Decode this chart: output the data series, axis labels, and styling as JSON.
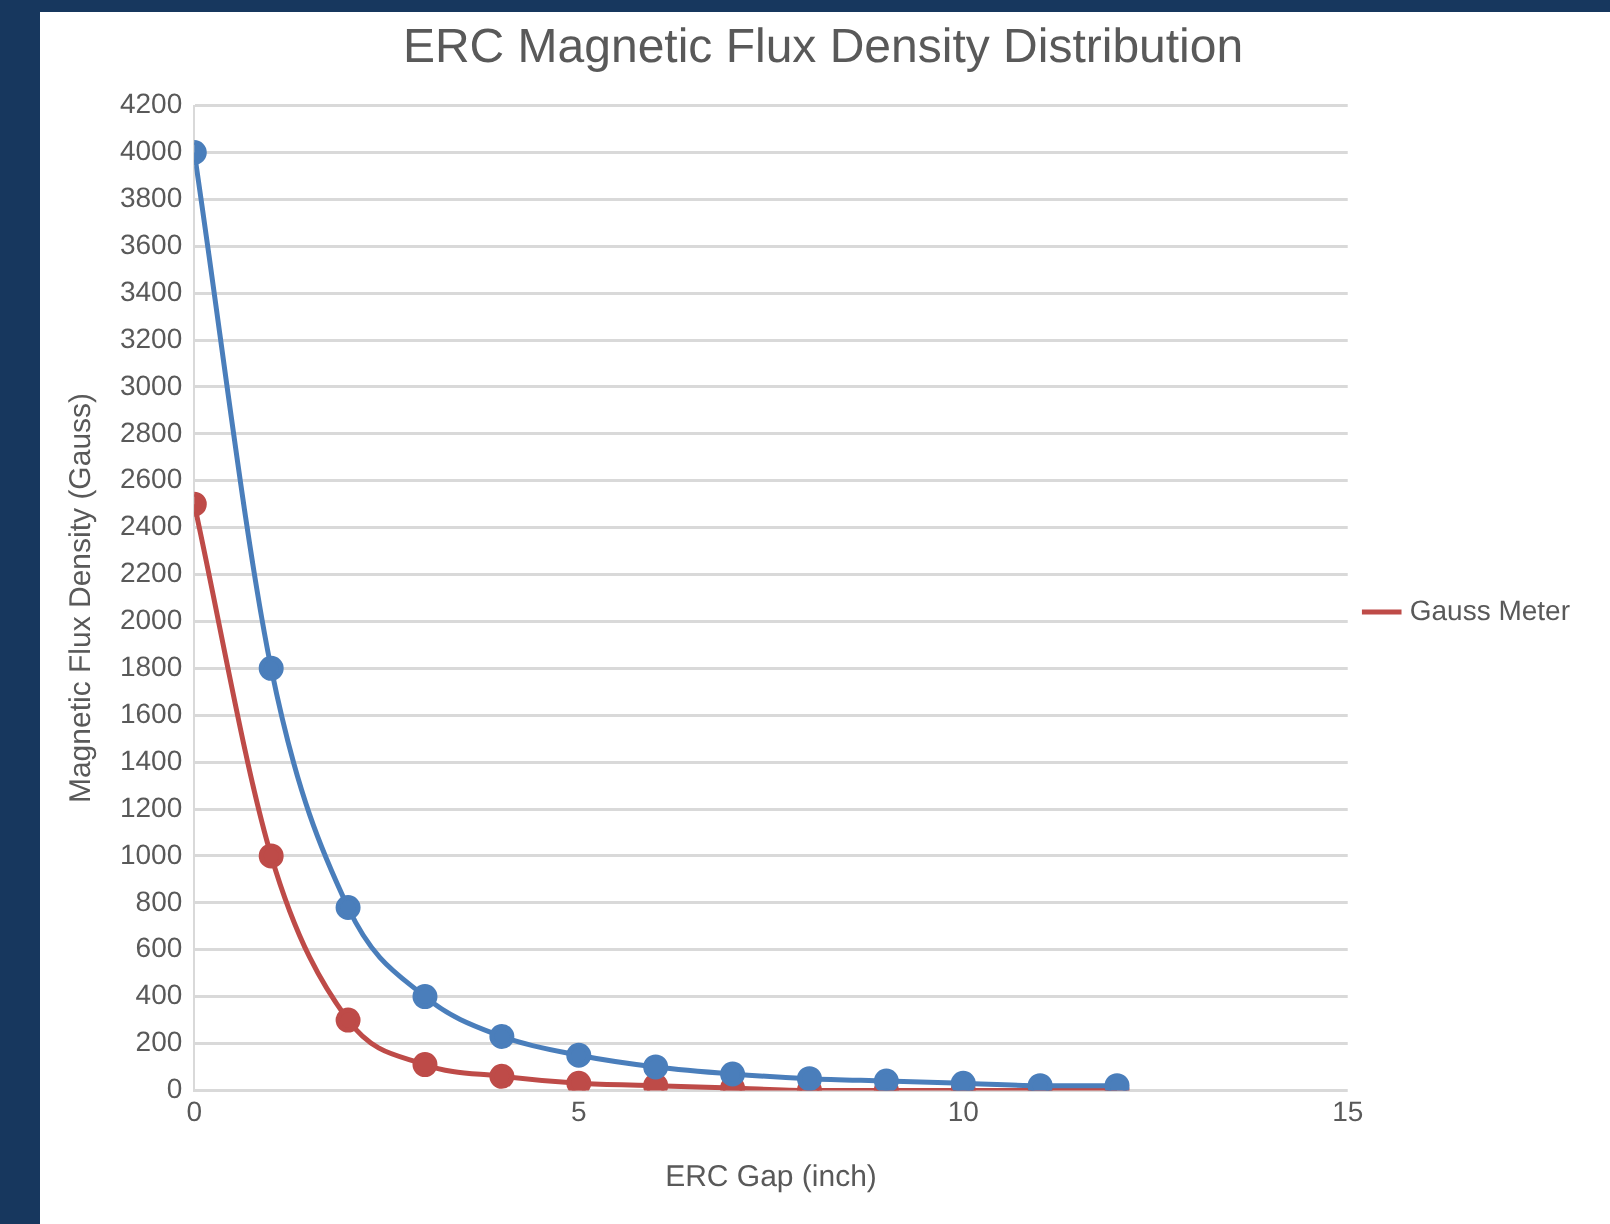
{
  "chart_data": {
    "type": "line",
    "title": "ERC Magnetic Flux Density Distribution",
    "xlabel": "ERC Gap (inch)",
    "ylabel": "Magnetic Flux Density (Gauss)",
    "x": [
      0,
      1,
      2,
      3,
      4,
      5,
      6,
      7,
      8,
      9,
      10,
      11,
      12
    ],
    "series": [
      {
        "color": "#4a7ebb",
        "values": [
          4000,
          1800,
          780,
          400,
          230,
          150,
          100,
          70,
          50,
          40,
          30,
          20,
          20
        ]
      },
      {
        "name": "Gauss Meter",
        "color": "#be4b48",
        "values": [
          2500,
          1000,
          300,
          110,
          60,
          30,
          20,
          10,
          0,
          0,
          0,
          0,
          0
        ]
      }
    ],
    "xlim": [
      0,
      15
    ],
    "xticks": [
      0,
      5,
      10,
      15
    ],
    "ylim": [
      0,
      4200
    ],
    "yticks": [
      0,
      200,
      400,
      600,
      800,
      1000,
      1200,
      1400,
      1600,
      1800,
      2000,
      2200,
      2400,
      2600,
      2800,
      3000,
      3200,
      3400,
      3600,
      3800,
      4000,
      4200
    ],
    "grid": "y",
    "legend": "right",
    "marker": "circle",
    "line_style": "solid"
  }
}
